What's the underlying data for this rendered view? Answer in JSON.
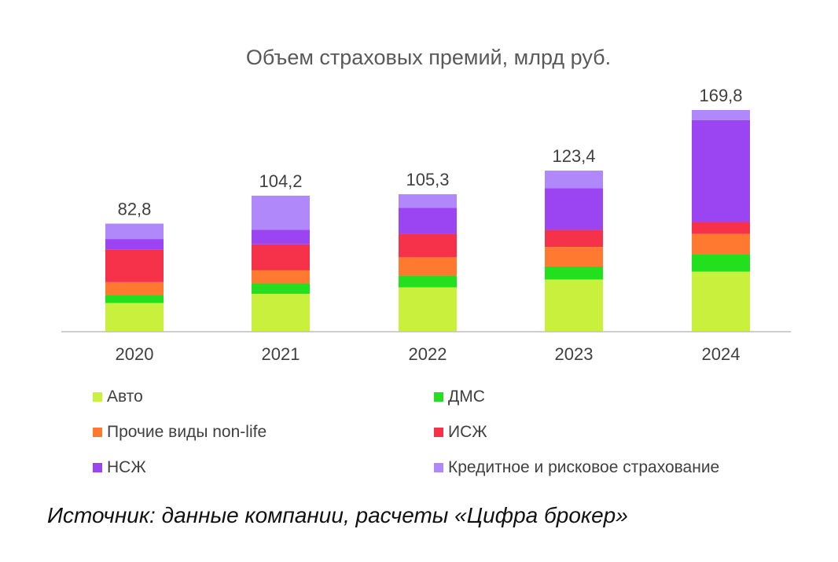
{
  "chart_data": {
    "type": "bar",
    "stacked": true,
    "title": "Объем страховых премий, млрд руб.",
    "categories": [
      "2020",
      "2021",
      "2022",
      "2023",
      "2024"
    ],
    "totals_labels": [
      "82,8",
      "104,2",
      "105,3",
      "123,4",
      "169,8"
    ],
    "totals": [
      82.8,
      104.2,
      105.3,
      123.4,
      169.8
    ],
    "series": [
      {
        "name": "Авто",
        "color": "#c8f03c",
        "values": [
          22,
          29,
          34,
          40,
          46
        ]
      },
      {
        "name": "ДМС",
        "color": "#22e01e",
        "values": [
          6,
          8,
          9,
          10,
          13
        ]
      },
      {
        "name": "Прочие виды non-life",
        "color": "#ff7a30",
        "values": [
          10,
          10,
          14,
          15,
          16
        ]
      },
      {
        "name": "ИСЖ",
        "color": "#f5324a",
        "values": [
          25,
          20,
          18,
          13,
          9
        ]
      },
      {
        "name": "НСЖ",
        "color": "#9b44f2",
        "values": [
          8,
          11,
          20,
          32,
          78
        ]
      },
      {
        "name": "Кредитное и рисковое страхование",
        "color": "#b088fa",
        "values": [
          11.8,
          26.2,
          10.3,
          13.4,
          7.8
        ]
      }
    ],
    "ylim": [
      0,
      169.8
    ],
    "grid": false,
    "xlabel": "",
    "ylabel": ""
  },
  "source": "Источник: данные компании, расчеты «Цифра брокер»"
}
